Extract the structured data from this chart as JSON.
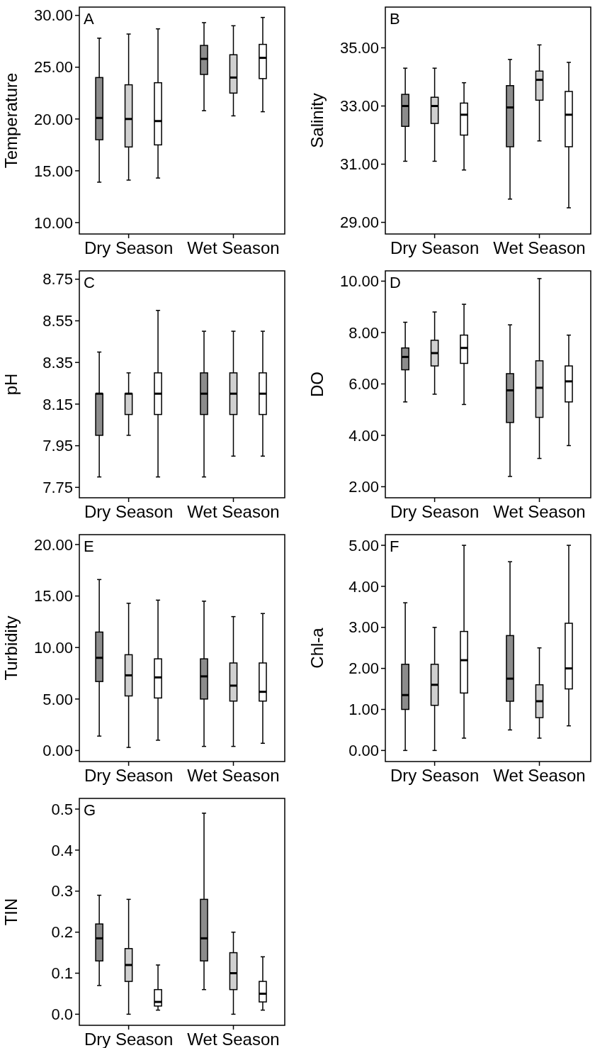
{
  "chart_data": [
    {
      "type": "box",
      "annotations": [
        "A"
      ],
      "ylabel": "Temperature",
      "categories": [
        "Dry Season",
        "Wet Season"
      ],
      "ylim": [
        8.9,
        30.8
      ],
      "yticks": [
        {
          "value": 10,
          "label": "10.00"
        },
        {
          "value": 15,
          "label": "15.00"
        },
        {
          "value": 20,
          "label": "20.00"
        },
        {
          "value": 25,
          "label": "25.00"
        },
        {
          "value": 30,
          "label": "30.00"
        }
      ],
      "series": [
        {
          "color": "#8c8c8c",
          "boxes": [
            {
              "low": 13.9,
              "q1": 18.0,
              "median": 20.1,
              "q3": 24.0,
              "high": 27.8
            },
            {
              "low": 20.8,
              "q1": 24.3,
              "median": 25.8,
              "q3": 27.1,
              "high": 29.3
            }
          ]
        },
        {
          "color": "#d0d0d0",
          "boxes": [
            {
              "low": 14.1,
              "q1": 17.3,
              "median": 20.0,
              "q3": 23.3,
              "high": 28.2
            },
            {
              "low": 20.3,
              "q1": 22.5,
              "median": 24.0,
              "q3": 26.2,
              "high": 29.0
            }
          ]
        },
        {
          "color": "#ffffff",
          "boxes": [
            {
              "low": 14.3,
              "q1": 17.5,
              "median": 19.8,
              "q3": 23.5,
              "high": 28.7
            },
            {
              "low": 20.7,
              "q1": 23.9,
              "median": 25.9,
              "q3": 27.2,
              "high": 29.8
            }
          ]
        }
      ]
    },
    {
      "type": "box",
      "annotations": [
        "B"
      ],
      "ylabel": "Salinity",
      "categories": [
        "Dry Season",
        "Wet Season"
      ],
      "ylim": [
        28.6,
        36.4
      ],
      "yticks": [
        {
          "value": 29,
          "label": "29.00"
        },
        {
          "value": 31,
          "label": "31.00"
        },
        {
          "value": 33,
          "label": "33.00"
        },
        {
          "value": 35,
          "label": "35.00"
        }
      ],
      "series": [
        {
          "color": "#8c8c8c",
          "boxes": [
            {
              "low": 31.1,
              "q1": 32.3,
              "median": 33.0,
              "q3": 33.4,
              "high": 34.3
            },
            {
              "low": 29.8,
              "q1": 31.6,
              "median": 32.95,
              "q3": 33.7,
              "high": 34.6
            }
          ]
        },
        {
          "color": "#d0d0d0",
          "boxes": [
            {
              "low": 31.1,
              "q1": 32.4,
              "median": 33.0,
              "q3": 33.3,
              "high": 34.3
            },
            {
              "low": 31.8,
              "q1": 33.2,
              "median": 33.9,
              "q3": 34.2,
              "high": 35.1
            }
          ]
        },
        {
          "color": "#ffffff",
          "boxes": [
            {
              "low": 30.8,
              "q1": 32.0,
              "median": 32.7,
              "q3": 33.1,
              "high": 33.8
            },
            {
              "low": 29.5,
              "q1": 31.6,
              "median": 32.7,
              "q3": 33.5,
              "high": 34.5
            }
          ]
        }
      ]
    },
    {
      "type": "box",
      "annotations": [
        "C"
      ],
      "ylabel": "pH",
      "categories": [
        "Dry Season",
        "Wet Season"
      ],
      "ylim": [
        7.7,
        8.79
      ],
      "yticks": [
        {
          "value": 7.75,
          "label": "7.75"
        },
        {
          "value": 7.95,
          "label": "7.95"
        },
        {
          "value": 8.15,
          "label": "8.15"
        },
        {
          "value": 8.35,
          "label": "8.35"
        },
        {
          "value": 8.55,
          "label": "8.55"
        },
        {
          "value": 8.75,
          "label": "8.75"
        }
      ],
      "series": [
        {
          "color": "#8c8c8c",
          "boxes": [
            {
              "low": 7.8,
              "q1": 8.0,
              "median": 8.2,
              "q3": 8.2,
              "high": 8.4
            },
            {
              "low": 7.8,
              "q1": 8.1,
              "median": 8.2,
              "q3": 8.3,
              "high": 8.5
            }
          ]
        },
        {
          "color": "#d0d0d0",
          "boxes": [
            {
              "low": 8.0,
              "q1": 8.1,
              "median": 8.2,
              "q3": 8.2,
              "high": 8.3
            },
            {
              "low": 7.9,
              "q1": 8.1,
              "median": 8.2,
              "q3": 8.3,
              "high": 8.5
            }
          ]
        },
        {
          "color": "#ffffff",
          "boxes": [
            {
              "low": 7.8,
              "q1": 8.1,
              "median": 8.2,
              "q3": 8.3,
              "high": 8.6
            },
            {
              "low": 7.9,
              "q1": 8.1,
              "median": 8.2,
              "q3": 8.3,
              "high": 8.5
            }
          ]
        }
      ]
    },
    {
      "type": "box",
      "annotations": [
        "D"
      ],
      "ylabel": "DO",
      "categories": [
        "Dry Season",
        "Wet Season"
      ],
      "ylim": [
        1.57,
        10.4
      ],
      "yticks": [
        {
          "value": 2,
          "label": "2.00"
        },
        {
          "value": 4,
          "label": "4.00"
        },
        {
          "value": 6,
          "label": "6.00"
        },
        {
          "value": 8,
          "label": "8.00"
        },
        {
          "value": 10,
          "label": "10.00"
        }
      ],
      "series": [
        {
          "color": "#8c8c8c",
          "boxes": [
            {
              "low": 5.3,
              "q1": 6.55,
              "median": 7.05,
              "q3": 7.4,
              "high": 8.4
            },
            {
              "low": 2.4,
              "q1": 4.5,
              "median": 5.75,
              "q3": 6.4,
              "high": 8.3
            }
          ]
        },
        {
          "color": "#d0d0d0",
          "boxes": [
            {
              "low": 5.6,
              "q1": 6.7,
              "median": 7.2,
              "q3": 7.7,
              "high": 8.8
            },
            {
              "low": 3.1,
              "q1": 4.7,
              "median": 5.85,
              "q3": 6.9,
              "high": 10.1
            }
          ]
        },
        {
          "color": "#ffffff",
          "boxes": [
            {
              "low": 5.2,
              "q1": 6.8,
              "median": 7.4,
              "q3": 7.9,
              "high": 9.1
            },
            {
              "low": 3.6,
              "q1": 5.3,
              "median": 6.1,
              "q3": 6.7,
              "high": 7.9
            }
          ]
        }
      ]
    },
    {
      "type": "box",
      "annotations": [
        "E"
      ],
      "ylabel": "Turbidity",
      "categories": [
        "Dry Season",
        "Wet Season"
      ],
      "ylim": [
        -1.07,
        20.96
      ],
      "yticks": [
        {
          "value": 0,
          "label": "0.00"
        },
        {
          "value": 5,
          "label": "5.00"
        },
        {
          "value": 10,
          "label": "10.00"
        },
        {
          "value": 15,
          "label": "15.00"
        },
        {
          "value": 20,
          "label": "20.00"
        }
      ],
      "series": [
        {
          "color": "#8c8c8c",
          "boxes": [
            {
              "low": 1.4,
              "q1": 6.7,
              "median": 9.0,
              "q3": 11.5,
              "high": 16.6
            },
            {
              "low": 0.4,
              "q1": 5.0,
              "median": 7.2,
              "q3": 8.9,
              "high": 14.5
            }
          ]
        },
        {
          "color": "#d0d0d0",
          "boxes": [
            {
              "low": 0.3,
              "q1": 5.3,
              "median": 7.3,
              "q3": 9.3,
              "high": 14.3
            },
            {
              "low": 0.4,
              "q1": 4.8,
              "median": 6.3,
              "q3": 8.5,
              "high": 13.0
            }
          ]
        },
        {
          "color": "#ffffff",
          "boxes": [
            {
              "low": 1.0,
              "q1": 5.1,
              "median": 7.1,
              "q3": 8.9,
              "high": 14.6
            },
            {
              "low": 0.7,
              "q1": 4.8,
              "median": 5.7,
              "q3": 8.5,
              "high": 13.3
            }
          ]
        }
      ]
    },
    {
      "type": "box",
      "annotations": [
        "F"
      ],
      "ylabel": "Chl-a",
      "categories": [
        "Dry Season",
        "Wet Season"
      ],
      "ylim": [
        -0.27,
        5.26
      ],
      "yticks": [
        {
          "value": 0,
          "label": "0.00"
        },
        {
          "value": 1,
          "label": "1.00"
        },
        {
          "value": 2,
          "label": "2.00"
        },
        {
          "value": 3,
          "label": "3.00"
        },
        {
          "value": 4,
          "label": "4.00"
        },
        {
          "value": 5,
          "label": "5.00"
        }
      ],
      "series": [
        {
          "color": "#8c8c8c",
          "boxes": [
            {
              "low": 0.0,
              "q1": 1.0,
              "median": 1.35,
              "q3": 2.1,
              "high": 3.6
            },
            {
              "low": 0.5,
              "q1": 1.2,
              "median": 1.75,
              "q3": 2.8,
              "high": 4.6
            }
          ]
        },
        {
          "color": "#d0d0d0",
          "boxes": [
            {
              "low": 0.0,
              "q1": 1.1,
              "median": 1.6,
              "q3": 2.1,
              "high": 3.0
            },
            {
              "low": 0.3,
              "q1": 0.8,
              "median": 1.2,
              "q3": 1.6,
              "high": 2.5
            }
          ]
        },
        {
          "color": "#ffffff",
          "boxes": [
            {
              "low": 0.3,
              "q1": 1.4,
              "median": 2.2,
              "q3": 2.9,
              "high": 5.0
            },
            {
              "low": 0.6,
              "q1": 1.5,
              "median": 2.0,
              "q3": 3.1,
              "high": 5.0
            }
          ]
        }
      ]
    },
    {
      "type": "box",
      "annotations": [
        "G"
      ],
      "ylabel": "TIN",
      "categories": [
        "Dry Season",
        "Wet Season"
      ],
      "ylim": [
        -0.027,
        0.526
      ],
      "yticks": [
        {
          "value": 0,
          "label": "0.0"
        },
        {
          "value": 0.1,
          "label": "0.1"
        },
        {
          "value": 0.2,
          "label": "0.2"
        },
        {
          "value": 0.3,
          "label": "0.3"
        },
        {
          "value": 0.4,
          "label": "0.4"
        },
        {
          "value": 0.5,
          "label": "0.5"
        }
      ],
      "series": [
        {
          "color": "#8c8c8c",
          "boxes": [
            {
              "low": 0.07,
              "q1": 0.13,
              "median": 0.185,
              "q3": 0.22,
              "high": 0.29
            },
            {
              "low": 0.06,
              "q1": 0.13,
              "median": 0.185,
              "q3": 0.28,
              "high": 0.49
            }
          ]
        },
        {
          "color": "#d0d0d0",
          "boxes": [
            {
              "low": 0.0,
              "q1": 0.08,
              "median": 0.12,
              "q3": 0.16,
              "high": 0.28
            },
            {
              "low": 0.0,
              "q1": 0.06,
              "median": 0.1,
              "q3": 0.15,
              "high": 0.2
            }
          ]
        },
        {
          "color": "#ffffff",
          "boxes": [
            {
              "low": 0.01,
              "q1": 0.02,
              "median": 0.03,
              "q3": 0.06,
              "high": 0.12
            },
            {
              "low": 0.01,
              "q1": 0.03,
              "median": 0.05,
              "q3": 0.08,
              "high": 0.14
            }
          ]
        }
      ]
    }
  ]
}
